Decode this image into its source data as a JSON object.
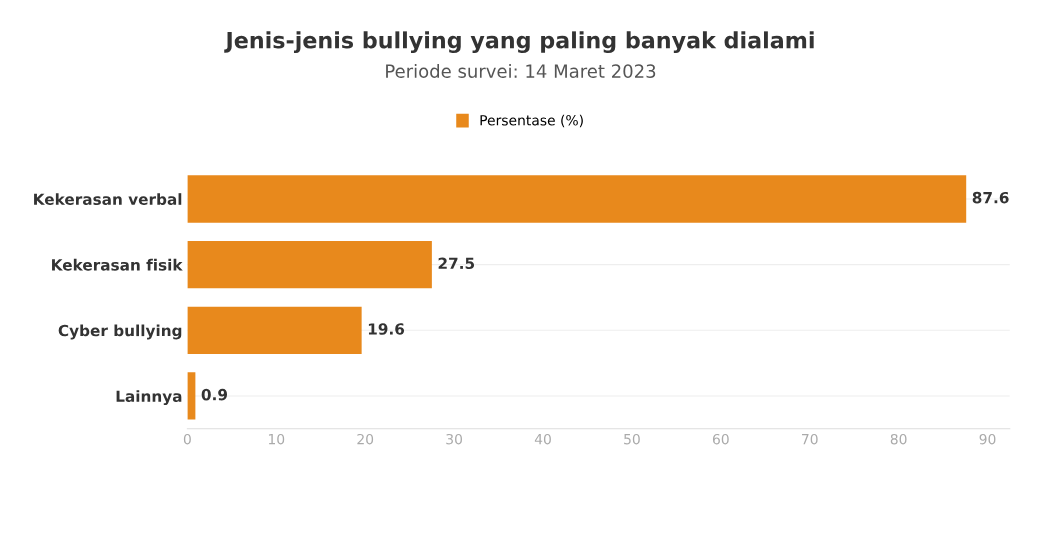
{
  "chart_data": {
    "type": "bar",
    "orientation": "horizontal",
    "title": "Jenis-jenis bullying yang paling banyak dialami",
    "subtitle": "Periode survei: 14 Maret 2023",
    "categories": [
      "Kekerasan verbal",
      "Kekerasan fisik",
      "Cyber bullying",
      "Lainnya"
    ],
    "series": [
      {
        "name": "Persentase (%)",
        "color": "#e8891c",
        "values": [
          87.6,
          27.5,
          19.6,
          0.9
        ]
      }
    ],
    "xlim": [
      0,
      92.5
    ],
    "xticks": [
      0,
      10,
      20,
      30,
      40,
      50,
      60,
      70,
      80,
      90
    ],
    "data_labels": true,
    "grid": "y",
    "legend": "top"
  }
}
